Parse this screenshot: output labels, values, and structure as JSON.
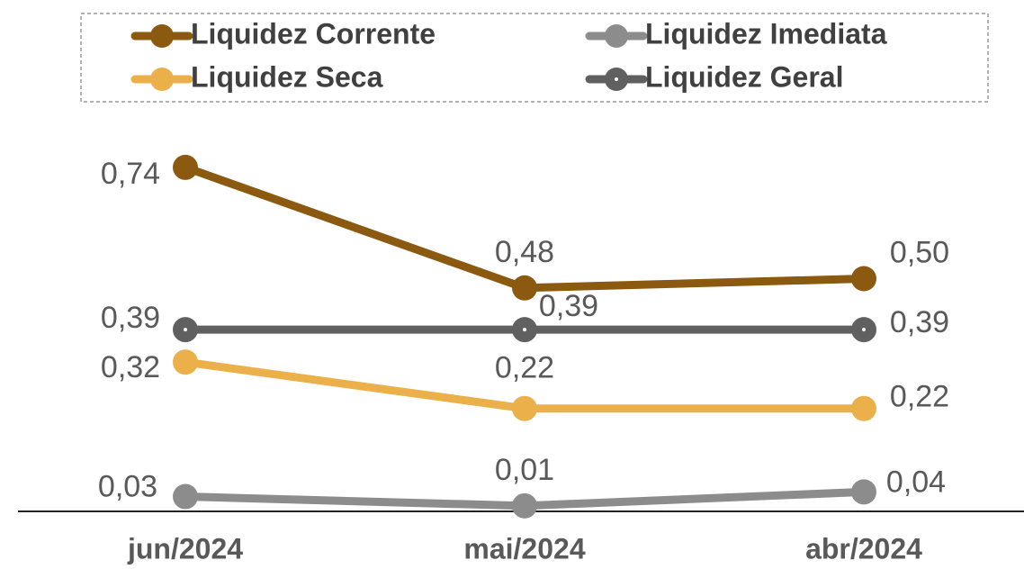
{
  "chart_data": {
    "type": "line",
    "categories": [
      "jun/2024",
      "mai/2024",
      "abr/2024"
    ],
    "series": [
      {
        "name": "Liquidez Corrente",
        "color": "#8b5a10",
        "values": [
          0.74,
          0.48,
          0.5
        ],
        "value_labels": [
          "0,74",
          "0,48",
          "0,50"
        ]
      },
      {
        "name": "Liquidez Imediata",
        "color": "#8c8c8c",
        "values": [
          0.03,
          0.01,
          0.04
        ],
        "value_labels": [
          "0,03",
          "0,01",
          "0,04"
        ]
      },
      {
        "name": "Liquidez Seca",
        "color": "#ebb04a",
        "values": [
          0.32,
          0.22,
          0.22
        ],
        "value_labels": [
          "0,32",
          "0,22",
          "0,22"
        ]
      },
      {
        "name": "Liquidez Geral",
        "color": "#606060",
        "values": [
          0.39,
          0.39,
          0.39
        ],
        "value_labels": [
          "0,39",
          "0,39",
          "0,39"
        ]
      }
    ]
  }
}
